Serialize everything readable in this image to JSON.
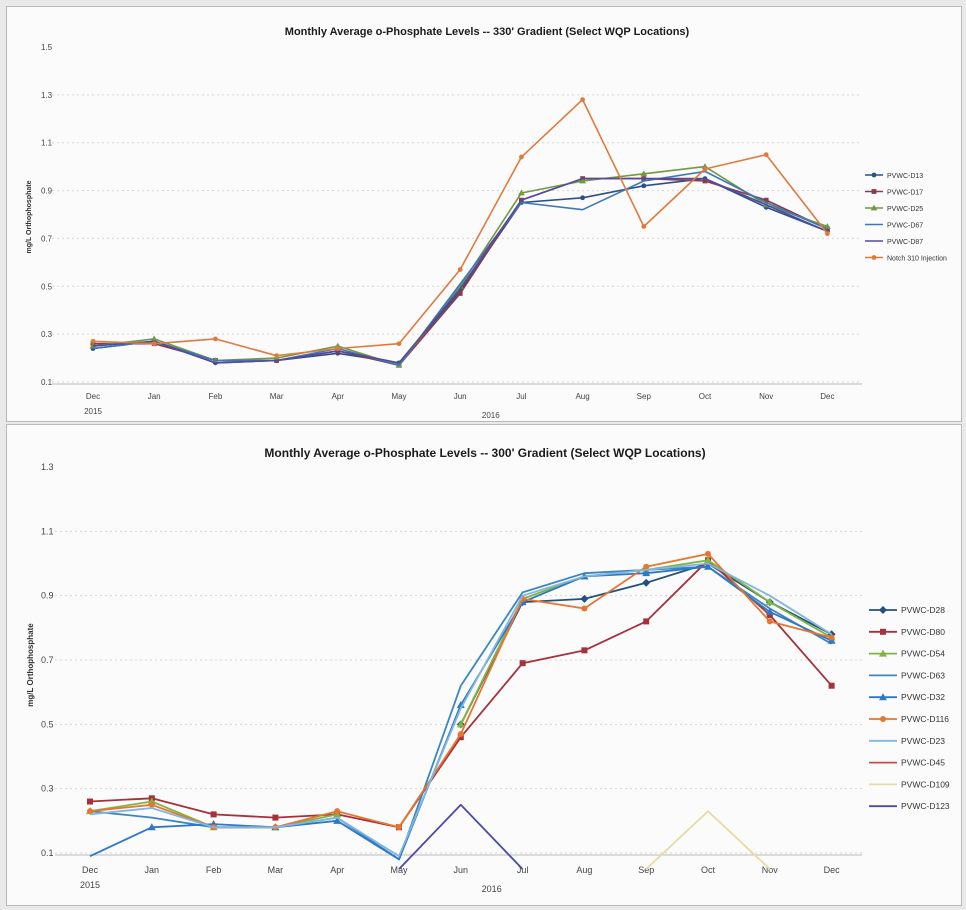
{
  "chart_data": [
    {
      "type": "line",
      "title": "Monthly Average o-Phosphate Levels -- 330' Gradient (Select WQP Locations)",
      "ylabel": "mg/L Orthophosphate",
      "xlabel": "",
      "ylim": [
        0.1,
        1.5
      ],
      "yticks": [
        "1.5",
        "1.3",
        "1.1",
        "0.9",
        "0.7",
        "0.5",
        "0.3",
        "0.1"
      ],
      "categories": [
        "Dec",
        "Jan",
        "Feb",
        "Mar",
        "Apr",
        "May",
        "Jun",
        "Jul",
        "Aug",
        "Sep",
        "Oct",
        "Nov",
        "Dec"
      ],
      "year_labels": [
        "2015",
        "2016"
      ],
      "grid": true,
      "legend": "right",
      "series": [
        {
          "name": "PVWC-D13",
          "color": "#2b4f8a",
          "marker": "circle",
          "values": [
            0.24,
            0.27,
            0.18,
            0.19,
            0.22,
            0.18,
            0.48,
            0.85,
            0.87,
            0.92,
            0.95,
            0.83,
            0.73
          ]
        },
        {
          "name": "PVWC-D17",
          "color": "#8a3a4e",
          "marker": "square",
          "values": [
            0.26,
            0.26,
            0.19,
            0.19,
            0.23,
            0.17,
            0.47,
            0.86,
            0.95,
            0.95,
            0.94,
            0.86,
            0.74
          ]
        },
        {
          "name": "PVWC-D25",
          "color": "#6f9a3e",
          "marker": "triangle",
          "values": [
            0.25,
            0.28,
            0.19,
            0.2,
            0.25,
            0.17,
            0.5,
            0.89,
            0.94,
            0.97,
            1.0,
            0.84,
            0.75
          ]
        },
        {
          "name": "PVWC-D67",
          "color": "#3d78b8",
          "marker": "none",
          "values": [
            0.24,
            0.27,
            0.19,
            0.19,
            0.24,
            0.17,
            0.51,
            0.85,
            0.82,
            0.94,
            0.98,
            0.85,
            0.74
          ]
        },
        {
          "name": "PVWC-D87",
          "color": "#554b9a",
          "marker": "none",
          "values": [
            0.25,
            0.27,
            0.18,
            0.19,
            0.23,
            0.18,
            0.49,
            0.86,
            0.95,
            0.95,
            0.95,
            0.84,
            0.73
          ]
        },
        {
          "name": "Notch 310 Injection",
          "color": "#e07a3c",
          "marker": "circle",
          "values": [
            0.27,
            0.26,
            0.28,
            0.21,
            0.24,
            0.26,
            0.57,
            1.04,
            1.28,
            0.75,
            0.99,
            1.05,
            0.72
          ]
        }
      ]
    },
    {
      "type": "line",
      "title": "Monthly Average o-Phosphate Levels -- 300' Gradient (Select WQP Locations)",
      "ylabel": "mg/L Orthophosphate",
      "xlabel": "",
      "ylim": [
        0.1,
        1.3
      ],
      "yticks": [
        "1.3",
        "1.1",
        "0.9",
        "0.7",
        "0.5",
        "0.3",
        "0.1"
      ],
      "categories": [
        "Dec",
        "Jan",
        "Feb",
        "Mar",
        "Apr",
        "May",
        "Jun",
        "Jul",
        "Aug",
        "Sep",
        "Oct",
        "Nov",
        "Dec"
      ],
      "year_labels": [
        "2015",
        "2016"
      ],
      "grid": true,
      "legend": "right",
      "series": [
        {
          "name": "PVWC-D28",
          "color": "#24507e",
          "marker": "diamond",
          "values": [
            null,
            null,
            null,
            null,
            null,
            null,
            0.5,
            0.88,
            0.89,
            0.94,
            1.0,
            0.88,
            0.78
          ]
        },
        {
          "name": "PVWC-D80",
          "color": "#a5313a",
          "marker": "square",
          "values": [
            0.26,
            0.27,
            0.22,
            0.21,
            0.22,
            0.18,
            0.46,
            0.69,
            0.73,
            0.82,
            1.01,
            0.84,
            0.62
          ]
        },
        {
          "name": "PVWC-D54",
          "color": "#7fb542",
          "marker": "triangle",
          "values": [
            0.23,
            0.26,
            0.18,
            0.18,
            0.22,
            null,
            0.5,
            0.89,
            0.96,
            0.98,
            1.01,
            0.88,
            0.77
          ]
        },
        {
          "name": "PVWC-D63",
          "color": "#3b86c2",
          "marker": "none",
          "values": [
            0.23,
            0.21,
            0.18,
            0.18,
            0.21,
            0.08,
            0.62,
            0.91,
            0.97,
            0.98,
            0.99,
            0.86,
            0.75
          ]
        },
        {
          "name": "PVWC-D32",
          "color": "#2f78c5",
          "marker": "triangle",
          "values": [
            0.09,
            0.18,
            0.19,
            0.18,
            0.2,
            0.08,
            0.56,
            0.88,
            0.96,
            0.97,
            0.99,
            0.85,
            0.76
          ]
        },
        {
          "name": "PVWC-D116",
          "color": "#e8752e",
          "marker": "circle",
          "values": [
            0.23,
            0.25,
            0.18,
            0.18,
            0.23,
            0.18,
            0.47,
            0.89,
            0.86,
            0.99,
            1.03,
            0.82,
            0.77
          ]
        },
        {
          "name": "PVWC-D23",
          "color": "#7fb7e0",
          "marker": "none",
          "values": [
            0.22,
            0.24,
            0.18,
            0.18,
            0.21,
            0.09,
            0.55,
            0.9,
            0.96,
            0.98,
            1.0,
            0.9,
            0.78
          ]
        },
        {
          "name": "PVWC-D45",
          "color": "#c0504d",
          "marker": "none",
          "values": [
            null,
            null,
            null,
            null,
            null,
            null,
            null,
            null,
            null,
            null,
            null,
            null,
            null
          ]
        },
        {
          "name": "PVWC-D109",
          "color": "#e6dca6",
          "marker": "none",
          "values": [
            null,
            null,
            null,
            null,
            null,
            null,
            null,
            null,
            null,
            0.05,
            0.23,
            0.05,
            null
          ]
        },
        {
          "name": "PVWC-D123",
          "color": "#4b4ba6",
          "marker": "none",
          "values": [
            null,
            null,
            null,
            null,
            null,
            0.05,
            0.25,
            0.05,
            null,
            null,
            null,
            null,
            null
          ]
        }
      ]
    }
  ]
}
